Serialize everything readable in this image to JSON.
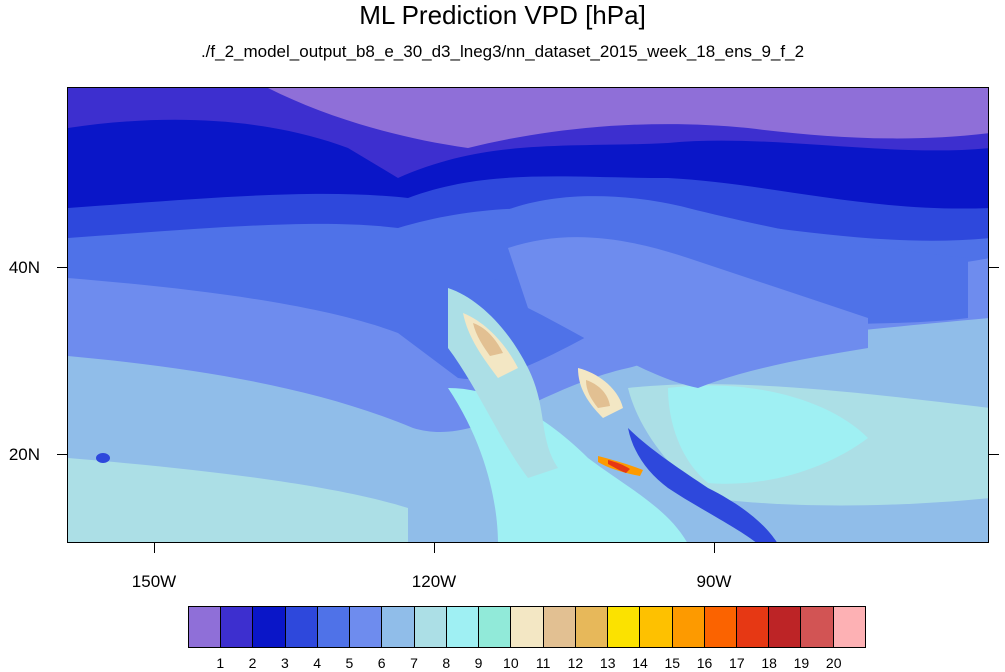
{
  "figure": {
    "title": "ML Prediction VPD [hPa]",
    "subtitle": "./f_2_model_output_b8_e_30_d3_lneg3/nn_dataset_2015_week_18_ens_9_f_2"
  },
  "map": {
    "lon_range": [
      -160,
      -58
    ],
    "lat_range": [
      10,
      59
    ],
    "lat_labels": [
      "40N",
      "20N"
    ],
    "lon_labels": [
      "150W",
      "120W",
      "90W"
    ]
  },
  "colorbar": {
    "labels": [
      "1",
      "2",
      "3",
      "4",
      "5",
      "6",
      "7",
      "8",
      "9",
      "10",
      "11",
      "12",
      "13",
      "14",
      "15",
      "16",
      "17",
      "18",
      "19",
      "20"
    ],
    "colors": [
      "#8f6fd8",
      "#3d2fcf",
      "#0a16c8",
      "#2e48dc",
      "#4f72e8",
      "#6e8cee",
      "#90bde9",
      "#acdfe6",
      "#9ff0f3",
      "#91ead9",
      "#f3e7c4",
      "#e2c092",
      "#e7b85a",
      "#fbe200",
      "#fec100",
      "#fd9a00",
      "#fb6300",
      "#e63814",
      "#bd2426",
      "#d25454",
      "#fdb1b4"
    ]
  },
  "chart_data": {
    "type": "heatmap",
    "title": "ML Prediction VPD [hPa]",
    "subtitle": "./f_2_model_output_b8_e_30_d3_lneg3/nn_dataset_2015_week_18_ens_9_f_2",
    "x_tick_labels": [
      "150W",
      "120W",
      "90W"
    ],
    "y_tick_labels": [
      "40N",
      "20N"
    ],
    "colorbar_levels": [
      1,
      2,
      3,
      4,
      5,
      6,
      7,
      8,
      9,
      10,
      11,
      12,
      13,
      14,
      15,
      16,
      17,
      18,
      19,
      20
    ],
    "value_range": [
      0,
      21
    ],
    "notes": "Filled contour map of vapor pressure deficit over North America and adjacent oceans"
  }
}
